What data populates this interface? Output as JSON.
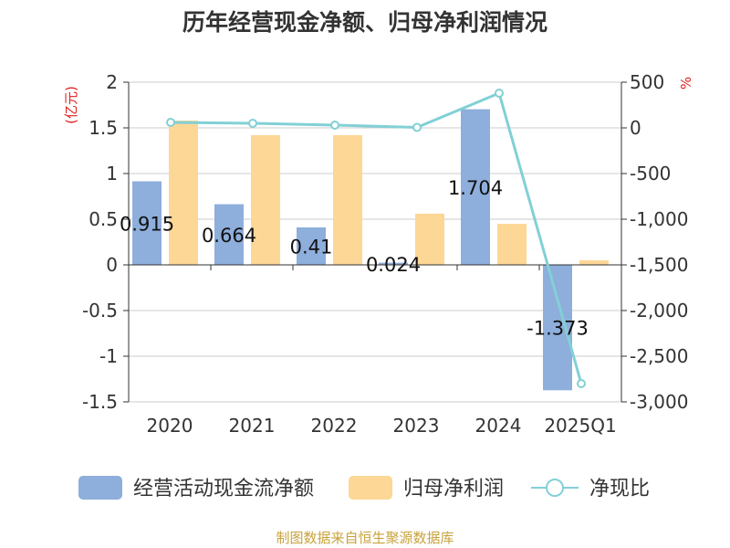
{
  "chart_data": {
    "type": "bar",
    "title": "历年经营现金净额、归母净利润情况",
    "categories": [
      "2020",
      "2021",
      "2022",
      "2023",
      "2024",
      "2025Q1"
    ],
    "ylabel_left": "(亿元)",
    "ylabel_right": "%",
    "ylim_left": [
      -1.5,
      2
    ],
    "yticks_left": [
      "2",
      "1.5",
      "1",
      "0.5",
      "0",
      "-0.5",
      "-1",
      "-1.5"
    ],
    "ylim_right": [
      -3000,
      500
    ],
    "yticks_right": [
      "500",
      "0",
      "-500",
      "-1,000",
      "-1,500",
      "-2,000",
      "-2,500",
      "-3,000"
    ],
    "series": [
      {
        "name": "经营活动现金流净额",
        "type": "bar",
        "axis": "left",
        "color": "#8eaedc",
        "values": [
          0.915,
          0.664,
          0.41,
          0.024,
          1.704,
          -1.373
        ],
        "labels": [
          "0.915",
          "0.664",
          "0.41",
          "0.024",
          "1.704",
          "-1.373"
        ]
      },
      {
        "name": "归母净利润",
        "type": "bar",
        "axis": "left",
        "color": "#fdd796",
        "values": [
          1.58,
          1.42,
          1.42,
          0.56,
          0.45,
          0.05
        ]
      },
      {
        "name": "净现比",
        "type": "line",
        "axis": "right",
        "color": "#82d0d6",
        "values": [
          60,
          50,
          30,
          5,
          380,
          -2800
        ]
      }
    ],
    "legend_position": "bottom",
    "grid": true
  },
  "footer": "制图数据来自恒生聚源数据库"
}
